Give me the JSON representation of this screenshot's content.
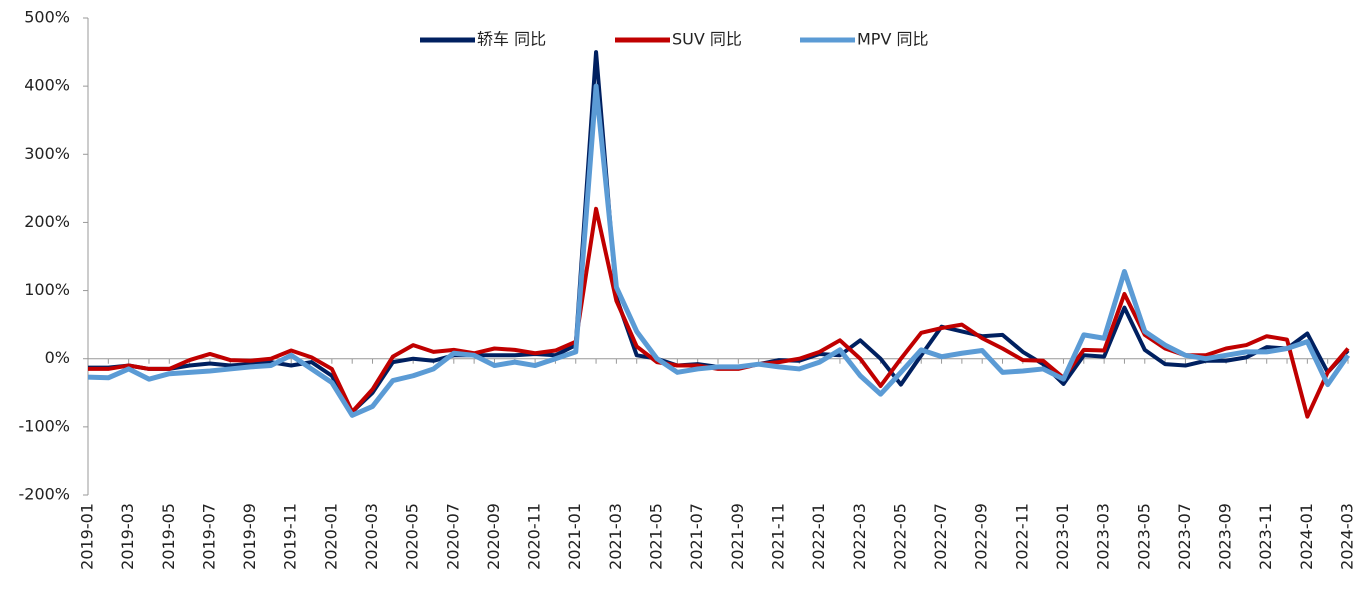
{
  "chart_data": {
    "type": "line",
    "categories": [
      "2019-01",
      null,
      "2019-03",
      null,
      "2019-05",
      null,
      "2019-07",
      null,
      "2019-09",
      null,
      "2019-11",
      null,
      "2020-01",
      null,
      "2020-03",
      null,
      "2020-05",
      null,
      "2020-07",
      null,
      "2020-09",
      null,
      "2020-11",
      null,
      "2021-01",
      null,
      "2021-03",
      null,
      "2021-05",
      null,
      "2021-07",
      null,
      "2021-09",
      null,
      "2021-11",
      null,
      "2022-01",
      null,
      "2022-03",
      null,
      "2022-05",
      null,
      "2022-07",
      null,
      "2022-09",
      null,
      "2022-11",
      null,
      "2023-01",
      null,
      "2023-03",
      null,
      "2023-05",
      null,
      "2023-07",
      null,
      "2023-09",
      null,
      "2023-11",
      null,
      "2024-01",
      null,
      "2024-03"
    ],
    "series": [
      {
        "name": "轿车 同比",
        "color": "#002060",
        "values": [
          -13,
          -13,
          -10,
          -15,
          -15,
          -10,
          -7,
          -10,
          -8,
          -5,
          -10,
          -5,
          -25,
          -78,
          -50,
          -5,
          0,
          -3,
          5,
          5,
          5,
          5,
          7,
          5,
          20,
          450,
          90,
          5,
          0,
          -10,
          -8,
          -12,
          -12,
          -8,
          -2,
          -3,
          7,
          5,
          27,
          0,
          -38,
          5,
          47,
          40,
          33,
          35,
          10,
          -8,
          -37,
          5,
          3,
          75,
          13,
          -8,
          -10,
          -3,
          -3,
          2,
          17,
          15,
          37,
          -20,
          12
        ]
      },
      {
        "name": "SUV 同比",
        "color": "#c00000",
        "values": [
          -15,
          -15,
          -10,
          -15,
          -15,
          -2,
          7,
          -2,
          -3,
          0,
          12,
          2,
          -15,
          -78,
          -45,
          3,
          20,
          10,
          13,
          8,
          15,
          13,
          8,
          12,
          25,
          220,
          85,
          18,
          -5,
          -10,
          -10,
          -15,
          -15,
          -8,
          -5,
          0,
          10,
          27,
          0,
          -40,
          0,
          38,
          45,
          50,
          30,
          15,
          -2,
          -3,
          -28,
          13,
          12,
          95,
          35,
          15,
          5,
          5,
          15,
          20,
          33,
          28,
          -85,
          -20,
          15
        ]
      },
      {
        "name": "MPV 同比",
        "color": "#5b9bd5",
        "values": [
          -27,
          -28,
          -15,
          -30,
          -22,
          -20,
          -18,
          -15,
          -12,
          -10,
          5,
          -15,
          -35,
          -83,
          -70,
          -32,
          -25,
          -15,
          8,
          5,
          -10,
          -5,
          -10,
          0,
          10,
          400,
          105,
          40,
          0,
          -20,
          -15,
          -12,
          -12,
          -8,
          -12,
          -15,
          -5,
          13,
          -25,
          -52,
          -20,
          13,
          3,
          8,
          12,
          -20,
          -18,
          -15,
          -30,
          35,
          30,
          128,
          40,
          20,
          5,
          0,
          5,
          10,
          10,
          15,
          25,
          -38,
          5
        ]
      }
    ],
    "ylim": [
      -200,
      500
    ],
    "yticks": [
      {
        "value": -200,
        "label": "-200%"
      },
      {
        "value": -100,
        "label": "-100%"
      },
      {
        "value": 0,
        "label": "0%"
      },
      {
        "value": 100,
        "label": "100%"
      },
      {
        "value": 200,
        "label": "200%"
      },
      {
        "value": 300,
        "label": "300%"
      },
      {
        "value": 400,
        "label": "400%"
      },
      {
        "value": 500,
        "label": "500%"
      }
    ],
    "legend": "top"
  }
}
